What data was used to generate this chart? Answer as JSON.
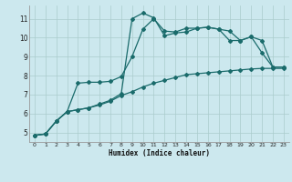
{
  "xlabel": "Humidex (Indice chaleur)",
  "xlim": [
    -0.5,
    23.5
  ],
  "ylim": [
    4.5,
    11.7
  ],
  "yticks": [
    5,
    6,
    7,
    8,
    9,
    10,
    11
  ],
  "xticks": [
    0,
    1,
    2,
    3,
    4,
    5,
    6,
    7,
    8,
    9,
    10,
    11,
    12,
    13,
    14,
    15,
    16,
    17,
    18,
    19,
    20,
    21,
    22,
    23
  ],
  "bg_color": "#cce8ee",
  "grid_color": "#aacccc",
  "line_color": "#1a6b6b",
  "line1_x": [
    0,
    1,
    2,
    3,
    4,
    5,
    6,
    7,
    8,
    9,
    10,
    11,
    12,
    13,
    14,
    15,
    16,
    17,
    18,
    19,
    20,
    21,
    22,
    23
  ],
  "line1_y": [
    4.85,
    4.92,
    5.6,
    6.1,
    6.2,
    6.3,
    6.45,
    6.65,
    6.95,
    7.15,
    7.4,
    7.6,
    7.75,
    7.9,
    8.05,
    8.1,
    8.15,
    8.2,
    8.25,
    8.3,
    8.35,
    8.38,
    8.38,
    8.38
  ],
  "line2_x": [
    0,
    1,
    2,
    3,
    4,
    5,
    6,
    7,
    8,
    9,
    10,
    11,
    12,
    13,
    14,
    15,
    16,
    17,
    18,
    19,
    20,
    21,
    22,
    23
  ],
  "line2_y": [
    4.85,
    4.92,
    5.6,
    6.1,
    7.6,
    7.65,
    7.65,
    7.7,
    7.95,
    9.0,
    10.45,
    11.0,
    10.35,
    10.3,
    10.5,
    10.5,
    10.55,
    10.45,
    9.85,
    9.85,
    10.05,
    9.2,
    8.45,
    8.45
  ],
  "line3_x": [
    0,
    1,
    2,
    3,
    4,
    5,
    6,
    7,
    8,
    9,
    10,
    11,
    12,
    13,
    14,
    15,
    16,
    17,
    18,
    19,
    20,
    21,
    22,
    23
  ],
  "line3_y": [
    4.85,
    4.92,
    5.6,
    6.1,
    6.2,
    6.3,
    6.5,
    6.7,
    7.05,
    11.0,
    11.3,
    11.05,
    10.1,
    10.25,
    10.3,
    10.5,
    10.55,
    10.45,
    10.35,
    9.85,
    10.05,
    9.85,
    8.45,
    8.45
  ]
}
